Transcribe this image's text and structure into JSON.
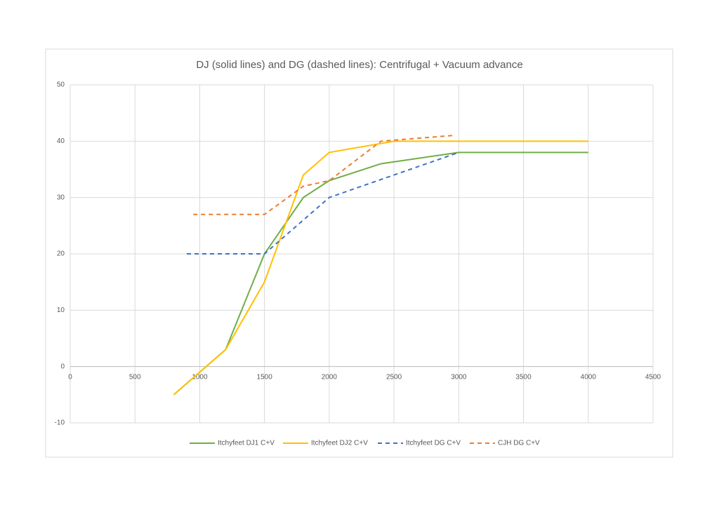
{
  "chart_data": {
    "type": "line",
    "title": "DJ (solid lines) and DG (dashed lines): Centrifugal + Vacuum advance",
    "xlim": [
      0,
      4500
    ],
    "xticks": [
      0,
      500,
      1000,
      1500,
      2000,
      2500,
      3000,
      3500,
      4000,
      4500
    ],
    "ylim": [
      -10,
      50
    ],
    "yticks": [
      -10,
      0,
      10,
      20,
      30,
      40,
      50
    ],
    "grid": true,
    "legend": "bottom",
    "series": [
      {
        "name": "Itchyfeet DJ1 C+V",
        "color": "#70ad47",
        "dashed": false,
        "x": [
          800,
          1200,
          1500,
          1800,
          2000,
          2400,
          3000,
          4000
        ],
        "values": [
          -5,
          3,
          20,
          30,
          33,
          36,
          38,
          38
        ]
      },
      {
        "name": "Itchyfeet DJ2 C+V",
        "color": "#ffc000",
        "dashed": false,
        "x": [
          800,
          1200,
          1500,
          1800,
          2000,
          2500,
          3000,
          4000
        ],
        "values": [
          -5,
          3,
          15,
          34,
          38,
          40,
          40,
          40
        ]
      },
      {
        "name": "Itchyfeet DG C+V",
        "color": "#4472c4",
        "dashed": true,
        "x": [
          900,
          1500,
          2000,
          3000
        ],
        "values": [
          20,
          20,
          30,
          38
        ]
      },
      {
        "name": "CJH DG C+V",
        "color": "#ed7d31",
        "dashed": true,
        "x": [
          950,
          1500,
          1800,
          2000,
          2400,
          2950
        ],
        "values": [
          27,
          27,
          32,
          33,
          40,
          41
        ]
      }
    ]
  }
}
